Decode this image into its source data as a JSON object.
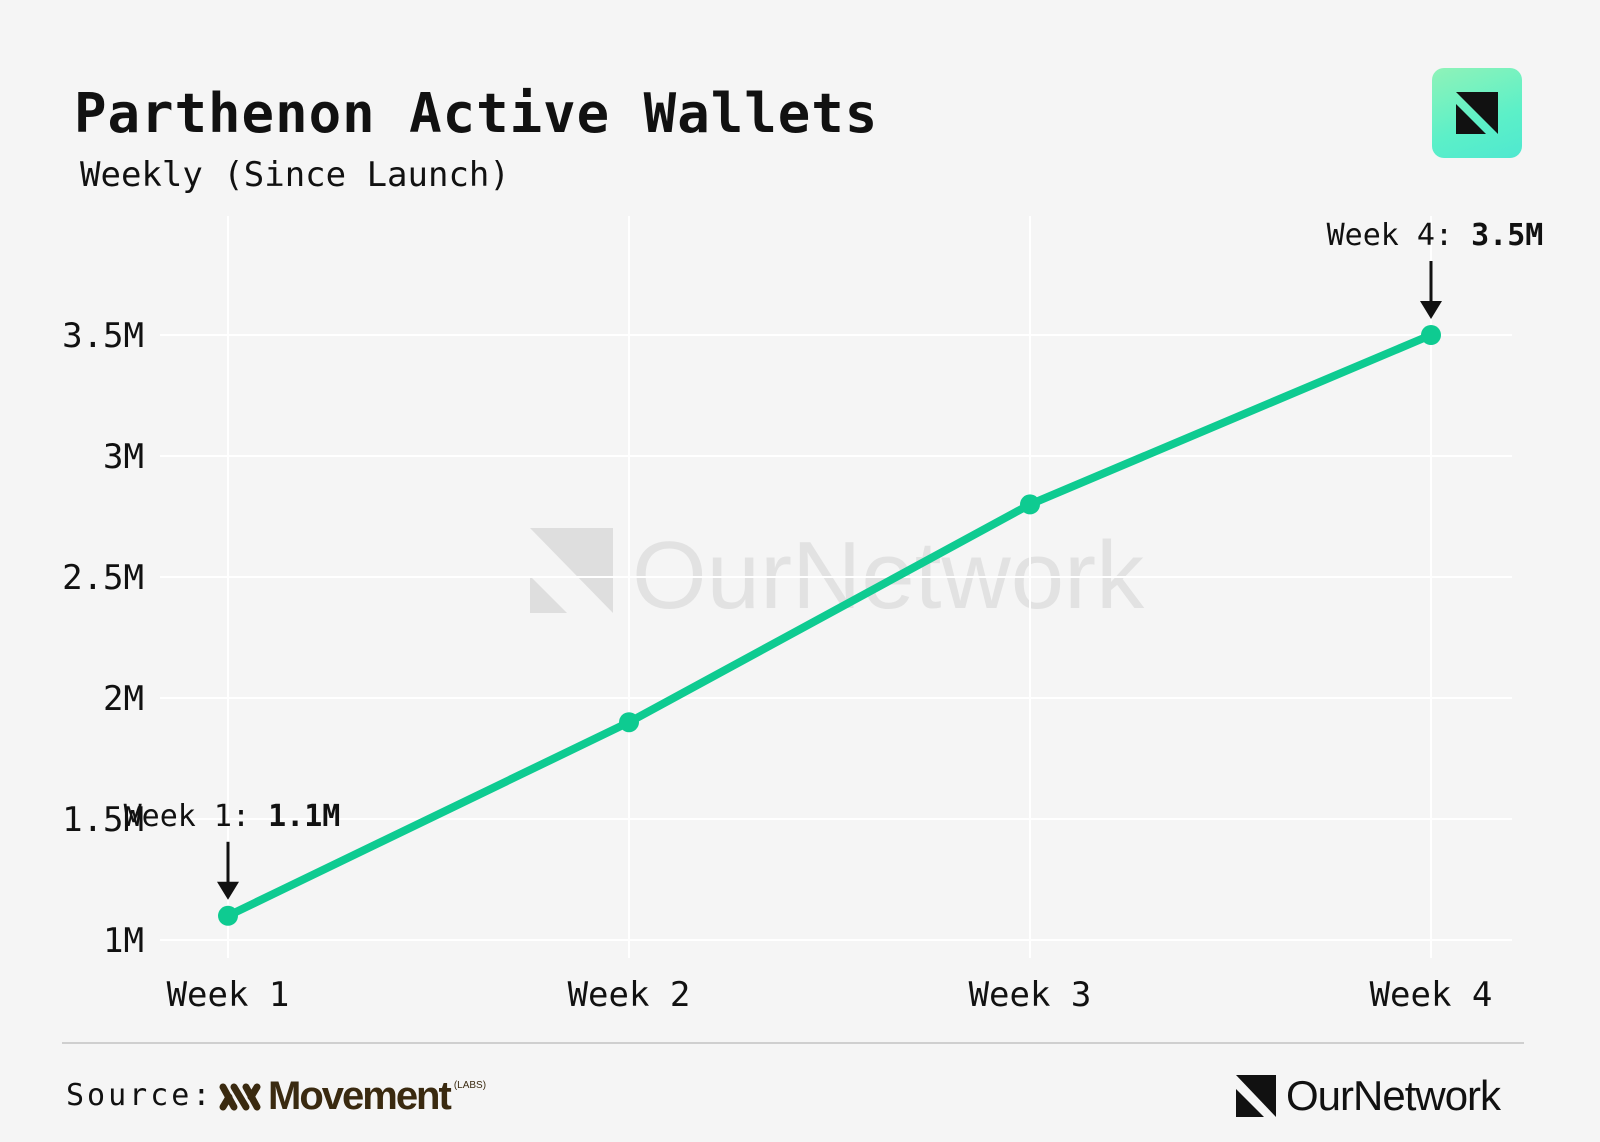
{
  "header": {
    "title": "Parthenon Active Wallets",
    "subtitle": "Weekly (Since Launch)"
  },
  "chart_data": {
    "type": "line",
    "categories": [
      "Week 1",
      "Week 2",
      "Week 3",
      "Week 4"
    ],
    "series": [
      {
        "values": [
          1.1,
          1.9,
          2.8,
          3.5
        ],
        "color": "#0ecb91"
      }
    ],
    "yticks": [
      1,
      1.5,
      2,
      2.5,
      3,
      3.5
    ],
    "ytick_labels": [
      "1M",
      "1.5M",
      "2M",
      "2.5M",
      "3M",
      "3.5M"
    ],
    "ylim": [
      0.95,
      3.9
    ],
    "grid": true,
    "legend": "none",
    "annotations": [
      {
        "label": "Week 1: ",
        "value": "1.1M",
        "category": "Week 1"
      },
      {
        "label": "Week 4: ",
        "value": "3.5M",
        "category": "Week 4"
      }
    ],
    "watermark": "OurNetwork"
  },
  "footer": {
    "source_label": "Source:",
    "source_name": "Movement",
    "source_tag": "(LABS)",
    "brand": "OurNetwork"
  },
  "icons": {
    "badge": "ournetwork-logo-icon",
    "source": "movement-logo-icon"
  }
}
